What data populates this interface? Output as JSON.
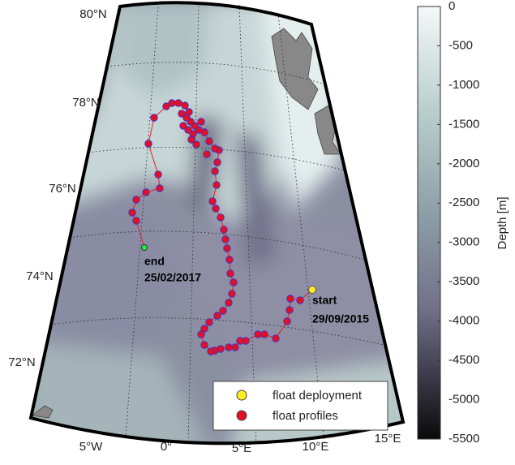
{
  "map": {
    "lat_labels": [
      "80°N",
      "78°N",
      "76°N",
      "74°N",
      "72°N"
    ],
    "lon_labels": [
      "5°W",
      "0°",
      "5°E",
      "10°E",
      "15°E"
    ],
    "annotations": {
      "end": {
        "label": "end",
        "date": "25/02/2017"
      },
      "start": {
        "label": "start",
        "date": "29/09/2015"
      }
    },
    "legend": [
      "float deployment",
      "float profiles"
    ],
    "colorbar": {
      "label": "Depth [m]",
      "lim": [
        -5500,
        0
      ],
      "ticks": [
        0,
        -500,
        -1000,
        -1500,
        -2000,
        -2500,
        -3000,
        -3500,
        -4000,
        -4500,
        -5000,
        -5500
      ]
    }
  }
}
